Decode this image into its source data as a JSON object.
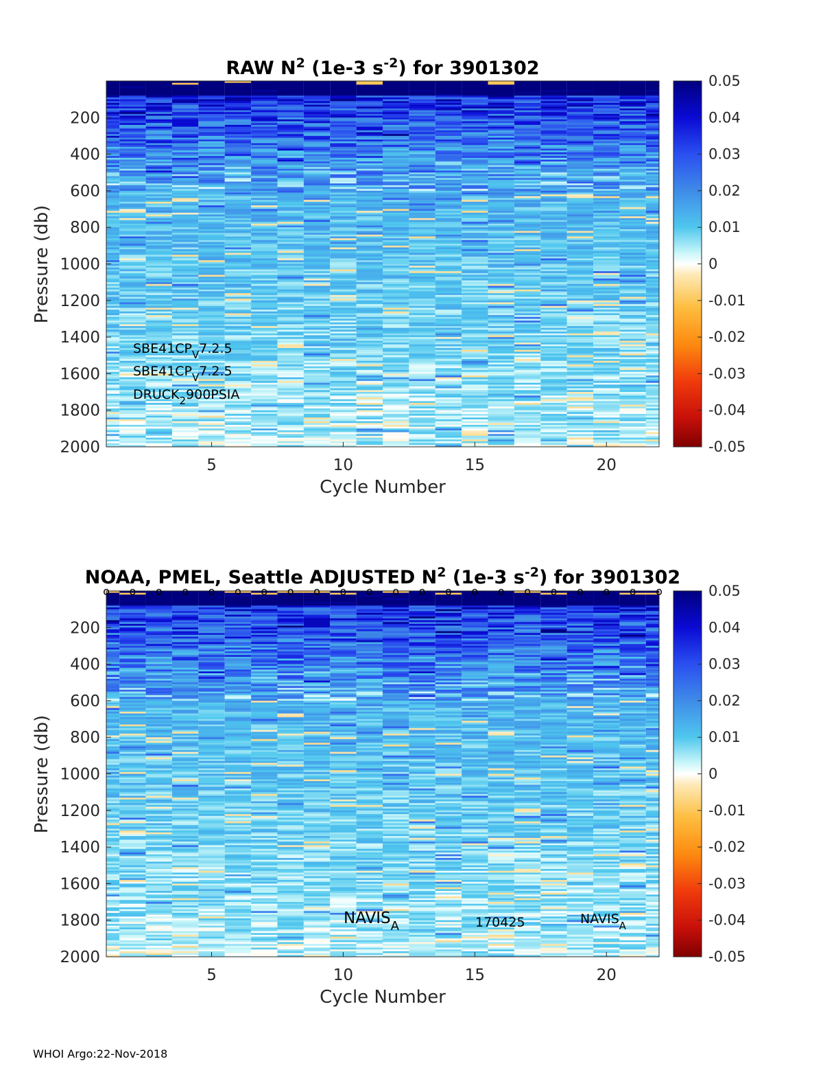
{
  "footer": "WHOI Argo:22-Nov-2018",
  "colorbar": {
    "ticks": [
      "0.05",
      "0.04",
      "0.03",
      "0.02",
      "0.01",
      "0",
      "-0.01",
      "-0.02",
      "-0.03",
      "-0.04",
      "-0.05"
    ],
    "clim": [
      -0.05,
      0.05
    ]
  },
  "chart_data": [
    {
      "type": "heatmap",
      "title_parts": {
        "pre": "RAW N",
        "sup1": "2",
        "mid": " (1e-3 s",
        "sup2": "-2",
        "post": ") for 3901302"
      },
      "xlabel": "Cycle Number",
      "ylabel": "Pressure (db)",
      "xticks": [
        "5",
        "10",
        "15",
        "20"
      ],
      "yticks": [
        "200",
        "400",
        "600",
        "800",
        "1000",
        "1200",
        "1400",
        "1600",
        "1800",
        "2000"
      ],
      "xlim": [
        1,
        22
      ],
      "ylim": [
        0,
        2000
      ],
      "y_reversed": true,
      "cycles": [
        1,
        22
      ],
      "annotations": [
        {
          "main": "SBE41CP",
          "sub": "V",
          "rest": "7.2.5"
        },
        {
          "main": "SBE41CP",
          "sub": "V",
          "rest": "7.2.5"
        },
        {
          "main": "DRUCK",
          "sub": "2",
          "rest": "900PSIA"
        }
      ]
    },
    {
      "type": "heatmap",
      "title_parts": {
        "pre": "NOAA, PMEL, Seattle  ADJUSTED N",
        "sup1": "2",
        "mid": " (1e-3 s",
        "sup2": "-2",
        "post": ") for 3901302"
      },
      "xlabel": "Cycle Number",
      "ylabel": "Pressure (db)",
      "xticks": [
        "5",
        "10",
        "15",
        "20"
      ],
      "yticks": [
        "200",
        "400",
        "600",
        "800",
        "1000",
        "1200",
        "1400",
        "1600",
        "1800",
        "2000"
      ],
      "xlim": [
        1,
        22
      ],
      "ylim": [
        0,
        2000
      ],
      "y_reversed": true,
      "cycles": [
        1,
        22
      ],
      "qc_marker": "o",
      "annotations": [
        {
          "main": "NAVIS",
          "sub": "A",
          "rest": ""
        },
        {
          "main": "170425",
          "sub": "",
          "rest": ""
        },
        {
          "main": "NAVIS",
          "sub": "A",
          "rest": ""
        }
      ]
    }
  ]
}
